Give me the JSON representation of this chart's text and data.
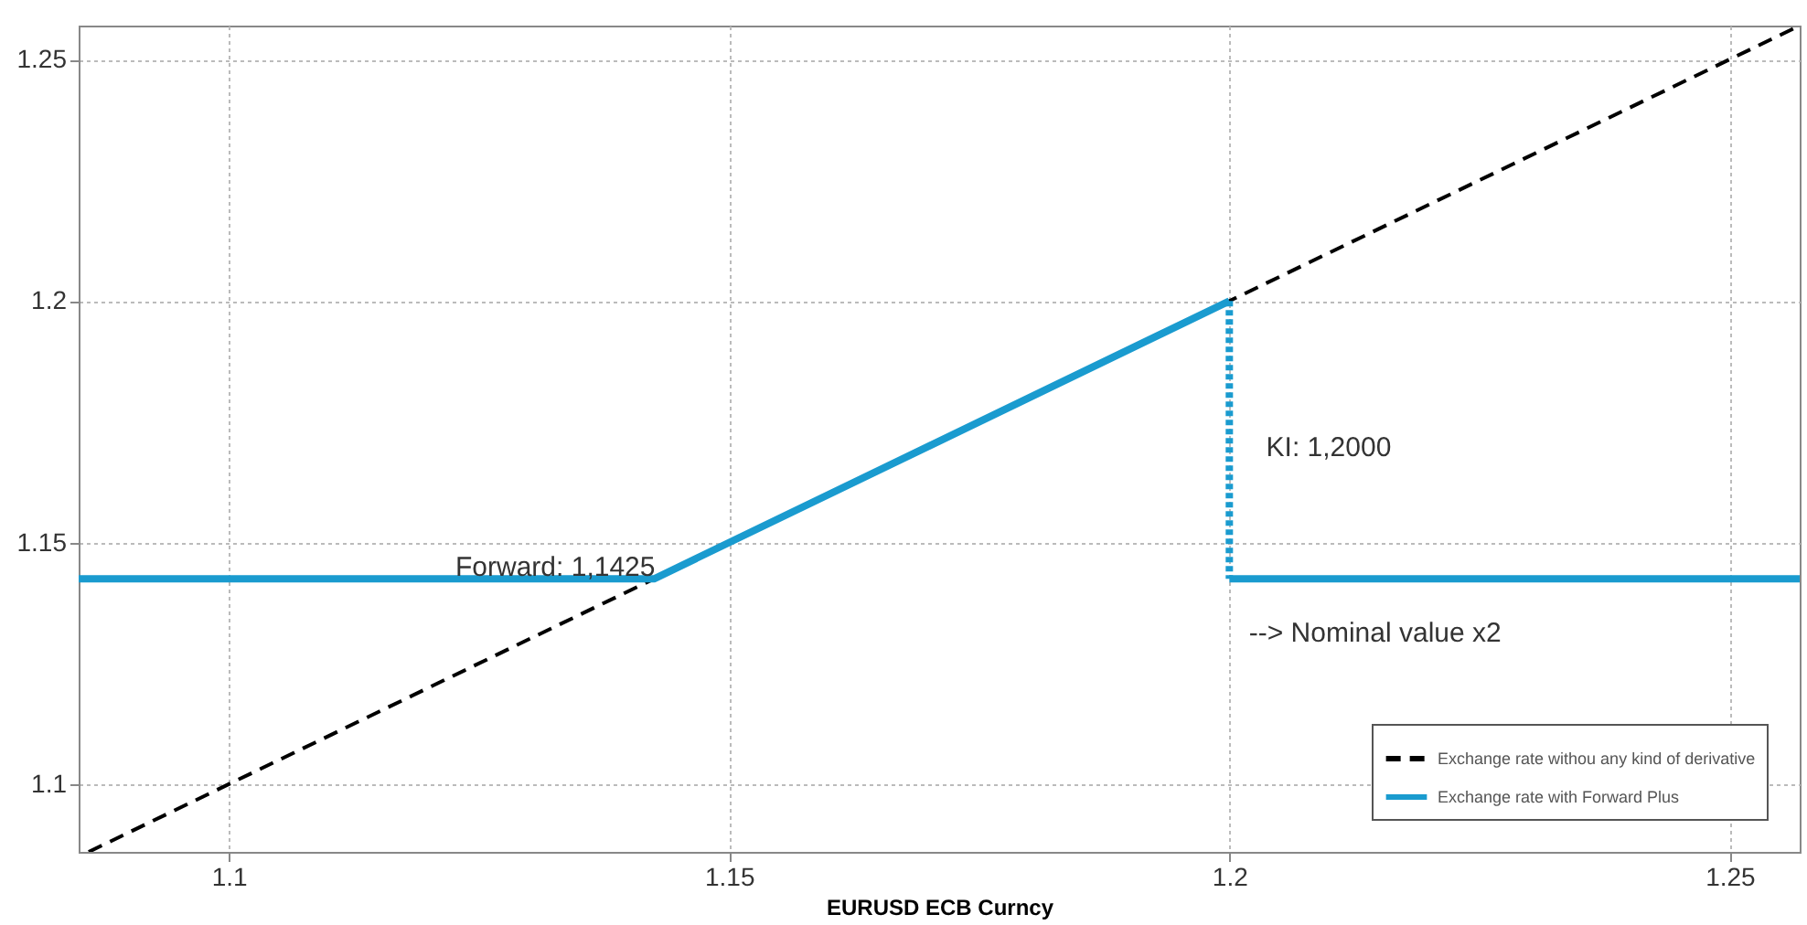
{
  "chart_data": {
    "type": "line",
    "xlabel": "EURUSD ECB Curncy",
    "xlim": [
      1.085,
      1.257
    ],
    "ylim": [
      1.086,
      1.257
    ],
    "xticks": [
      1.1,
      1.15,
      1.2,
      1.25
    ],
    "yticks": [
      1.1,
      1.15,
      1.2,
      1.25
    ],
    "grid": true,
    "legend": "bottom right",
    "series": [
      {
        "name": "Exchange rate withou any kind of derivative",
        "color": "#000000",
        "line_style": "dashed",
        "x": [
          1.086,
          1.257
        ],
        "values": [
          1.086,
          1.257
        ]
      },
      {
        "name": "Exchange rate with Forward Plus",
        "color": "#1a9bcf",
        "line_style": "solid",
        "x": [
          1.085,
          1.1425,
          1.2
        ],
        "values": [
          1.1425,
          1.1425,
          1.2
        ]
      },
      {
        "color": "#1a9bcf",
        "line_style": "dotted",
        "x": [
          1.2,
          1.2
        ],
        "values": [
          1.2,
          1.1425
        ]
      },
      {
        "color": "#1a9bcf",
        "line_style": "solid",
        "x": [
          1.2,
          1.257
        ],
        "values": [
          1.1425,
          1.1425
        ]
      }
    ],
    "annotations": [
      "Forward: 1,1425",
      "KI: 1,2000",
      "--> Nominal value x2"
    ]
  }
}
